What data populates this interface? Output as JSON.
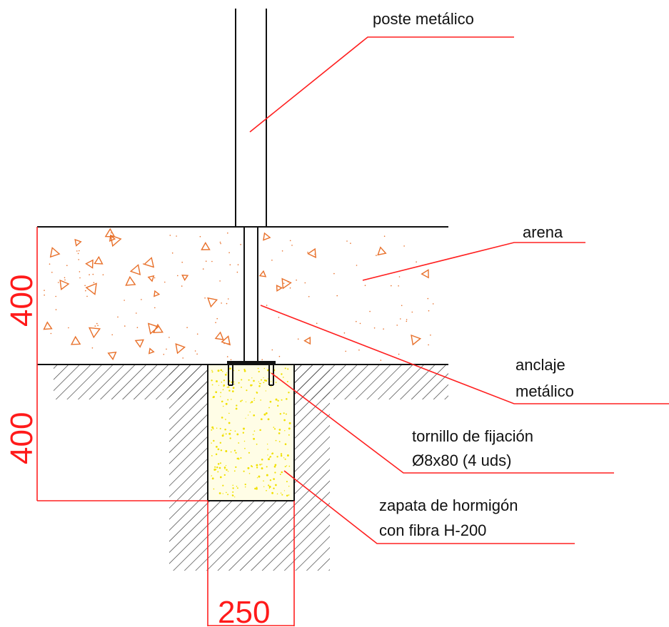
{
  "labels": {
    "post": "poste metálico",
    "sand": "arena",
    "anchor_line1": "anclaje",
    "anchor_line2": "metálico",
    "screw_line1": "tornillo de fijación",
    "screw_line2": "Ø8x80 (4 uds)",
    "footing_line1": "zapata de hormigón",
    "footing_line2": "con fibra  H-200"
  },
  "dimensions": {
    "sand_depth": "400",
    "footing_depth": "400",
    "footing_width": "250"
  },
  "colors": {
    "leader": "#ff2020",
    "dimension": "#ff1a1a",
    "sand_marks": "#e8702a",
    "concrete_dots": "#f0e000",
    "outline": "#111111"
  }
}
